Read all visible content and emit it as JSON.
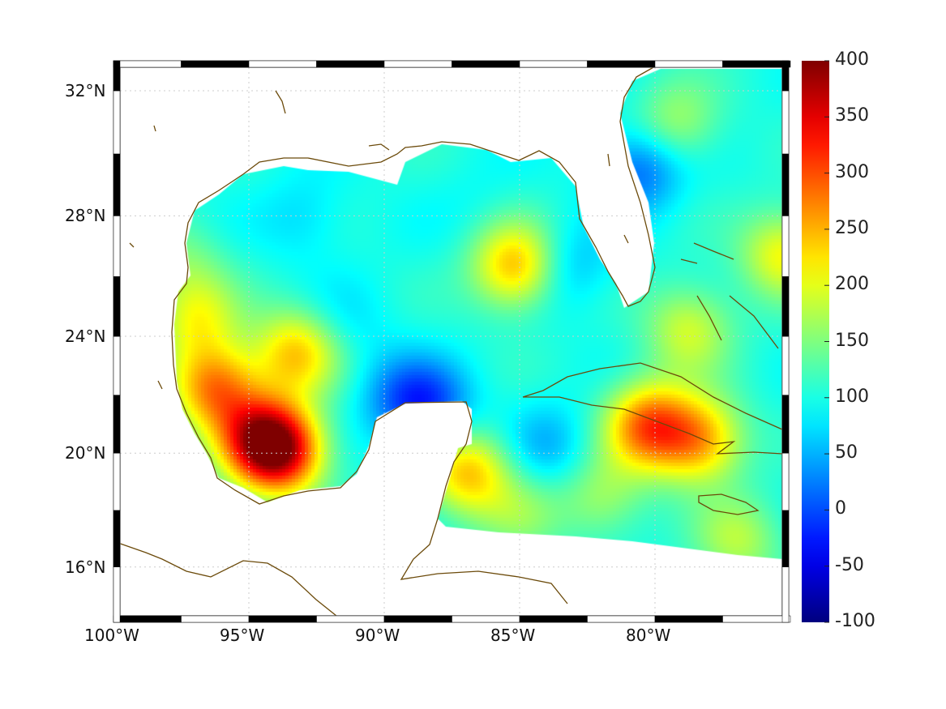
{
  "map": {
    "lon_range": [
      -100,
      -75
    ],
    "lat_range": [
      14,
      33
    ],
    "lon_ticks": [
      {
        "value": -100,
        "label": "100°W"
      },
      {
        "value": -95,
        "label": "95°W"
      },
      {
        "value": -90,
        "label": "90°W"
      },
      {
        "value": -85,
        "label": "85°W"
      },
      {
        "value": -80,
        "label": "80°W"
      }
    ],
    "lat_ticks": [
      {
        "value": 32,
        "label": "32°N"
      },
      {
        "value": 28,
        "label": "28°N"
      },
      {
        "value": 24,
        "label": "24°N"
      },
      {
        "value": 20,
        "label": "20°N"
      },
      {
        "value": 16,
        "label": "16°N"
      }
    ],
    "coast_color": "#6b4a0a",
    "field_background_value": 100,
    "field_features": [
      {
        "lon": -93.9,
        "lat": 20.1,
        "value": 330
      },
      {
        "lon": -94.7,
        "lat": 20.6,
        "value": 260
      },
      {
        "lon": -96.3,
        "lat": 22.3,
        "value": 270
      },
      {
        "lon": -93.3,
        "lat": 23.5,
        "value": 235
      },
      {
        "lon": -85.2,
        "lat": 26.4,
        "value": 250
      },
      {
        "lon": -80.3,
        "lat": 21.0,
        "value": 280
      },
      {
        "lon": -78.4,
        "lat": 20.5,
        "value": 250
      },
      {
        "lon": -87.0,
        "lat": 19.4,
        "value": 240
      },
      {
        "lon": -88.3,
        "lat": 21.6,
        "value": 10
      },
      {
        "lon": -89.5,
        "lat": 22.0,
        "value": 40
      },
      {
        "lon": -80.6,
        "lat": 29.6,
        "value": 10
      },
      {
        "lon": -83.3,
        "lat": 26.4,
        "value": 50
      },
      {
        "lon": -84.0,
        "lat": 20.3,
        "value": 50
      },
      {
        "lon": -97.0,
        "lat": 24.6,
        "value": 195
      },
      {
        "lon": -78.8,
        "lat": 24.3,
        "value": 190
      },
      {
        "lon": -79.3,
        "lat": 31.0,
        "value": 170
      },
      {
        "lon": -77.0,
        "lat": 17.0,
        "value": 175
      },
      {
        "lon": -82.0,
        "lat": 18.5,
        "value": 165
      },
      {
        "lon": -91.5,
        "lat": 24.5,
        "value": 75
      },
      {
        "lon": -93.0,
        "lat": 28.0,
        "value": 70
      },
      {
        "lon": -86.5,
        "lat": 28.5,
        "value": 90
      },
      {
        "lon": -75.3,
        "lat": 26.8,
        "value": 210
      },
      {
        "lon": -85.0,
        "lat": 18.0,
        "value": 150
      },
      {
        "lon": -97.5,
        "lat": 26.5,
        "value": 145
      }
    ]
  },
  "colorbar": {
    "min": -100,
    "max": 400,
    "ticks": [
      "400",
      "350",
      "300",
      "250",
      "200",
      "150",
      "100",
      "50",
      "0",
      "-50",
      "-100"
    ]
  }
}
